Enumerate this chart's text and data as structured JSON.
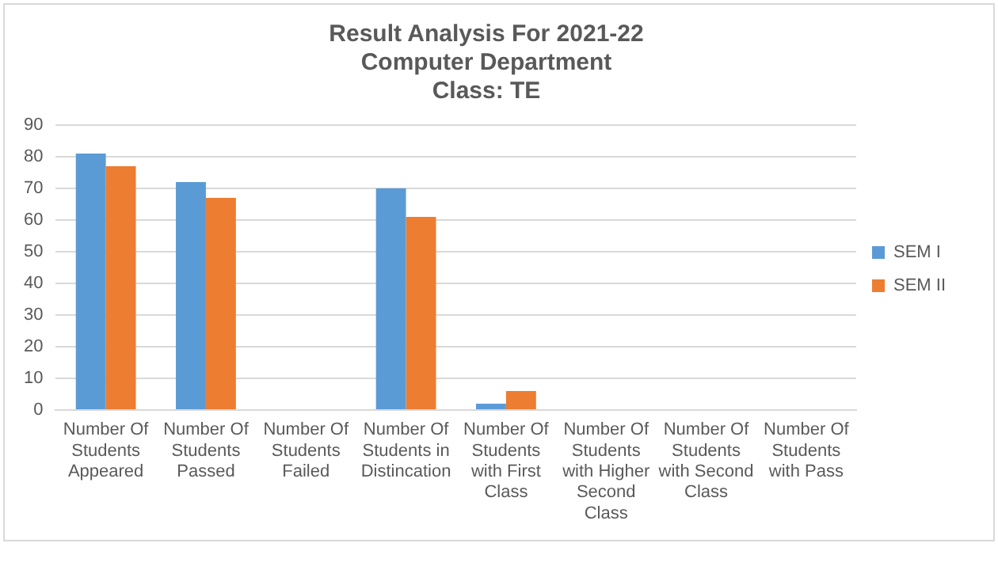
{
  "chart_data": {
    "type": "bar",
    "title": [
      "Result Analysis For 2021-22",
      "Computer Department",
      "Class: TE"
    ],
    "categories": [
      "Number Of Students Appeared",
      "Number Of Students Passed",
      "Number Of Students Failed",
      "Number Of Students in Distincation",
      "Number Of Students with First Class",
      "Number Of Students with Higher Second Class",
      "Number Of Students with Second Class",
      "Number Of Students with Pass"
    ],
    "series": [
      {
        "name": "SEM I",
        "color": "#5b9bd5",
        "values": [
          81,
          72,
          0,
          70,
          2,
          0,
          0,
          0
        ]
      },
      {
        "name": "SEM II",
        "color": "#ed7d31",
        "values": [
          77,
          67,
          0,
          61,
          6,
          0,
          0,
          0
        ]
      }
    ],
    "ylim": [
      0,
      90
    ],
    "yticks": [
      0,
      10,
      20,
      30,
      40,
      50,
      60,
      70,
      80,
      90
    ],
    "grid": "y",
    "legend": "right"
  }
}
